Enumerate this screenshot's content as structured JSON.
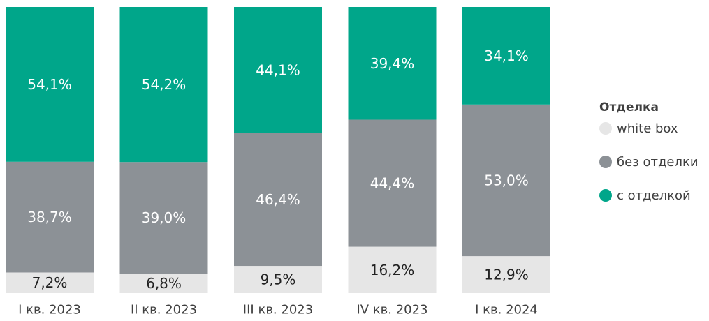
{
  "chart_data": {
    "type": "bar",
    "stacked": true,
    "categories": [
      "I кв. 2023",
      "II кв. 2023",
      "III кв. 2023",
      "IV кв. 2023",
      "I кв. 2024"
    ],
    "series": [
      {
        "name": "white box",
        "values": [
          7.2,
          6.8,
          9.5,
          16.2,
          12.9
        ],
        "labels": [
          "7,2%",
          "6,8%",
          "9,5%",
          "16,2%",
          "12,9%"
        ],
        "color": "#e6e6e6",
        "text_color": "#222222"
      },
      {
        "name": "без отделки",
        "values": [
          38.7,
          39.0,
          46.4,
          44.4,
          53.0
        ],
        "labels": [
          "38,7%",
          "39,0%",
          "46,4%",
          "44,4%",
          "53,0%"
        ],
        "color": "#8c9196",
        "text_color": "#ffffff"
      },
      {
        "name": "с отделкой",
        "values": [
          54.1,
          54.2,
          44.1,
          39.4,
          34.1
        ],
        "labels": [
          "54,1%",
          "54,2%",
          "44,1%",
          "39,4%",
          "34,1%"
        ],
        "color": "#00a68a",
        "text_color": "#ffffff"
      }
    ],
    "ylim": [
      0,
      100
    ],
    "legend": {
      "title": "Отделка",
      "position": "right"
    },
    "grid": false
  }
}
